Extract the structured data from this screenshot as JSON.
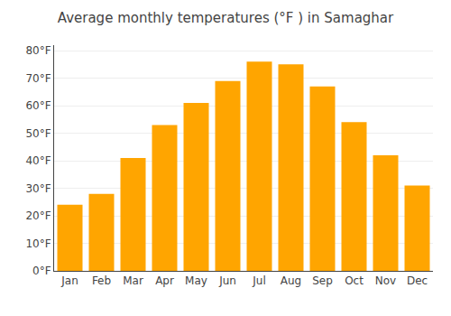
{
  "chart_data": {
    "type": "bar",
    "title": "Average monthly temperatures (°F ) in Samaghar",
    "categories": [
      "Jan",
      "Feb",
      "Mar",
      "Apr",
      "May",
      "Jun",
      "Jul",
      "Aug",
      "Sep",
      "Oct",
      "Nov",
      "Dec"
    ],
    "values": [
      24,
      28,
      41,
      53,
      61,
      69,
      76,
      75,
      67,
      54,
      42,
      31
    ],
    "color": "#FFA500",
    "ylim": [
      0,
      82
    ],
    "yticks": [
      {
        "value": 0,
        "label": "0°F"
      },
      {
        "value": 10,
        "label": "10°F"
      },
      {
        "value": 20,
        "label": "20°F"
      },
      {
        "value": 30,
        "label": "30°F"
      },
      {
        "value": 40,
        "label": "40°F"
      },
      {
        "value": 50,
        "label": "50°F"
      },
      {
        "value": 60,
        "label": "60°F"
      },
      {
        "value": 70,
        "label": "70°F"
      },
      {
        "value": 80,
        "label": "80°F"
      }
    ],
    "grid": true
  }
}
